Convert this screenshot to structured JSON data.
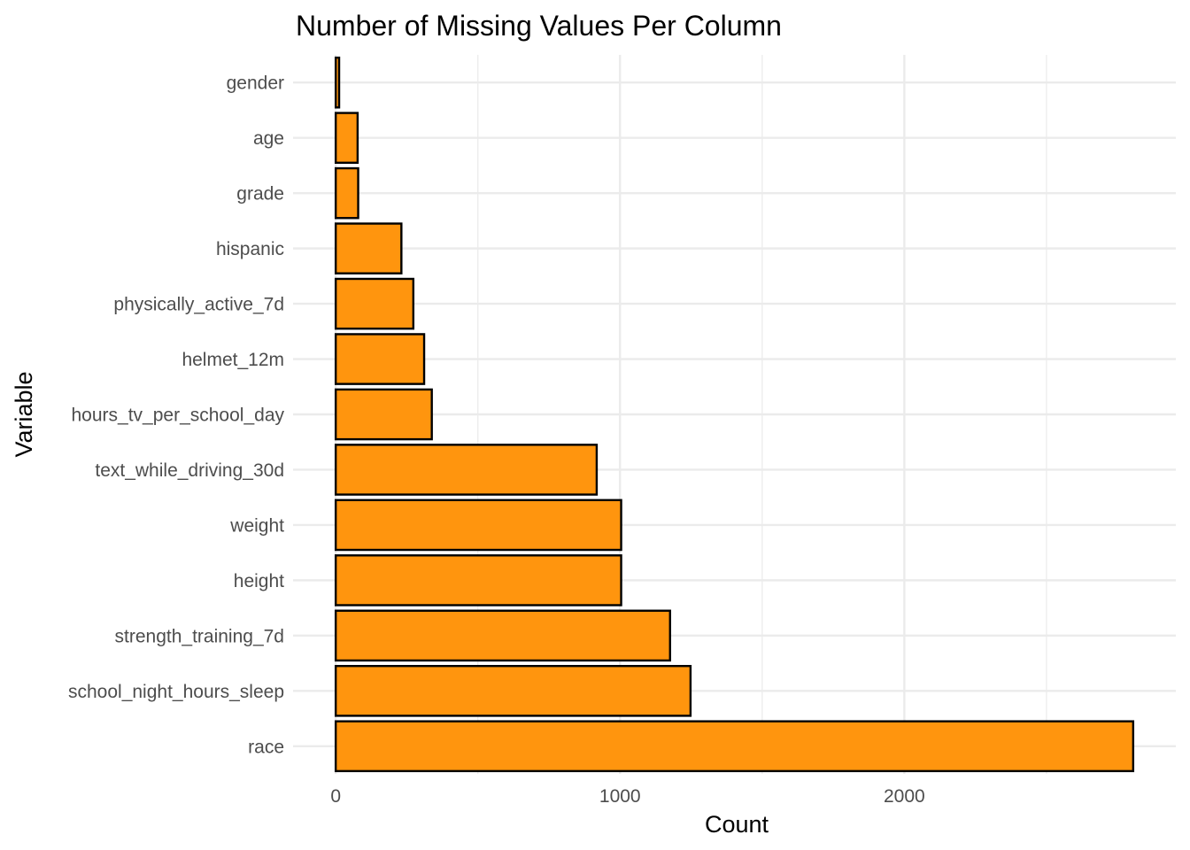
{
  "chart_data": {
    "type": "bar",
    "orientation": "horizontal",
    "title": "Number of Missing Values Per Column",
    "xlabel": "Count",
    "ylabel": "Variable",
    "categories": [
      "gender",
      "age",
      "grade",
      "hispanic",
      "physically_active_7d",
      "helmet_12m",
      "hours_tv_per_school_day",
      "text_while_driving_30d",
      "weight",
      "height",
      "strength_training_7d",
      "school_night_hours_sleep",
      "race"
    ],
    "values": [
      12,
      77,
      79,
      231,
      273,
      311,
      338,
      918,
      1004,
      1004,
      1176,
      1248,
      2805
    ],
    "xlim": [
      -150,
      2955
    ],
    "xticks": [
      0,
      1000,
      2000
    ],
    "xtick_labels": [
      "0",
      "1000",
      "2000"
    ],
    "bar_color": "#FF950E",
    "bar_outline": "#000000",
    "grid": true,
    "legend": "none"
  }
}
